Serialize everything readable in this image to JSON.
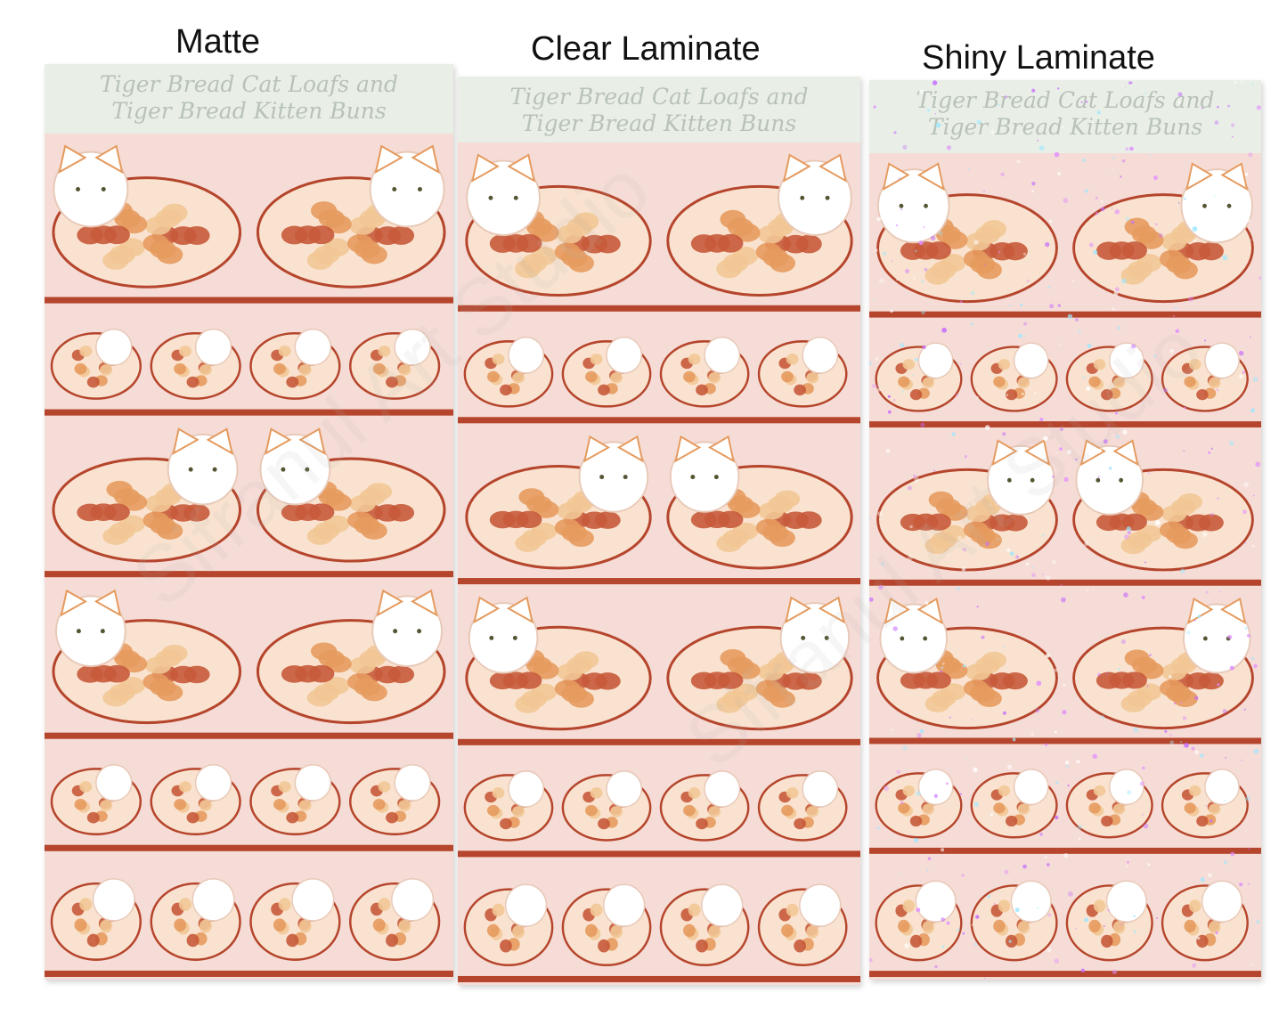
{
  "labels": {
    "matte": "Matte",
    "clear": "Clear Laminate",
    "shiny": "Shiny Laminate"
  },
  "sheet_header": {
    "line1": "Tiger Bread Cat Loafs and",
    "line2": "Tiger Bread Kitten Buns"
  },
  "watermark_text": "Sifranul Art Studio",
  "colors": {
    "sheet_bg": "#f6dcd6",
    "header_bg": "#e9efe6",
    "band": "#b5452c",
    "cat_white": "#ffffff",
    "spot_dark": "#c65a3a",
    "spot_mid": "#e59a5e",
    "spot_light": "#f2c795"
  }
}
